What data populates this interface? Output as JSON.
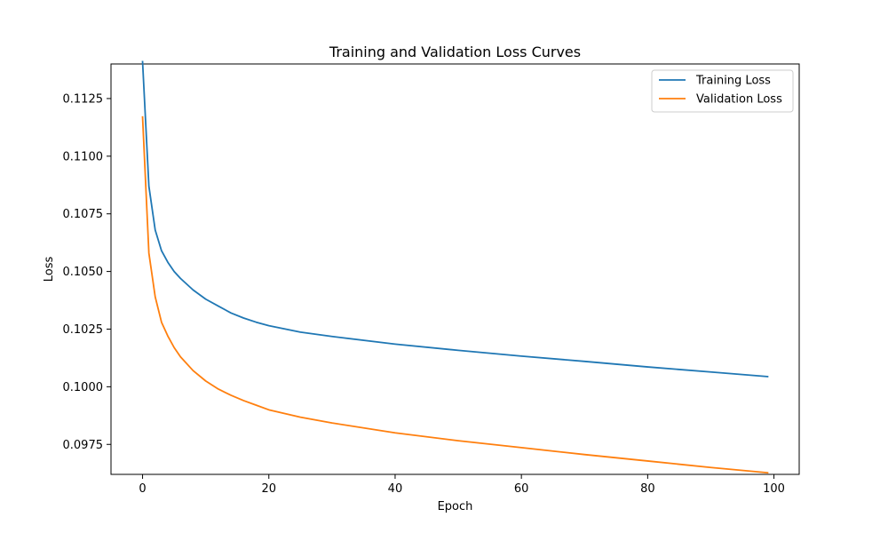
{
  "chart_data": {
    "type": "line",
    "title": "Training and Validation Loss Curves",
    "xlabel": "Epoch",
    "ylabel": "Loss",
    "xlim": [
      -5,
      104
    ],
    "ylim": [
      0.0962,
      0.114
    ],
    "xticks": [
      0,
      20,
      40,
      60,
      80,
      100
    ],
    "yticks": [
      0.0975,
      0.1,
      0.1025,
      0.105,
      0.1075,
      0.11,
      0.1125
    ],
    "ytick_labels": [
      "0.0975",
      "0.1000",
      "0.1025",
      "0.1050",
      "0.1075",
      "0.1100",
      "0.1125"
    ],
    "xtick_labels": [
      "0",
      "20",
      "40",
      "60",
      "80",
      "100"
    ],
    "grid": false,
    "legend_position": "top-right",
    "series": [
      {
        "name": "Training Loss",
        "color": "#1f77b4",
        "x": [
          0,
          1,
          2,
          3,
          4,
          5,
          6,
          8,
          10,
          12,
          14,
          16,
          18,
          20,
          25,
          30,
          40,
          50,
          60,
          70,
          80,
          90,
          99
        ],
        "y": [
          0.1141,
          0.1087,
          0.1068,
          0.1059,
          0.1054,
          0.105,
          0.1047,
          0.1042,
          0.1038,
          0.1035,
          0.1032,
          0.10298,
          0.1028,
          0.10265,
          0.10237,
          0.10218,
          0.10185,
          0.10158,
          0.10133,
          0.1011,
          0.10086,
          0.10064,
          0.10044
        ]
      },
      {
        "name": "Validation Loss",
        "color": "#ff7f0e",
        "x": [
          0,
          1,
          2,
          3,
          4,
          5,
          6,
          8,
          10,
          12,
          14,
          16,
          18,
          20,
          25,
          30,
          40,
          50,
          60,
          70,
          80,
          90,
          99
        ],
        "y": [
          0.1117,
          0.1058,
          0.1039,
          0.1028,
          0.1022,
          0.1017,
          0.1013,
          0.1007,
          0.10025,
          0.0999,
          0.09963,
          0.0994,
          0.0992,
          0.099,
          0.09868,
          0.09843,
          0.098,
          0.09766,
          0.09736,
          0.09706,
          0.09678,
          0.0965,
          0.09627
        ]
      }
    ]
  }
}
